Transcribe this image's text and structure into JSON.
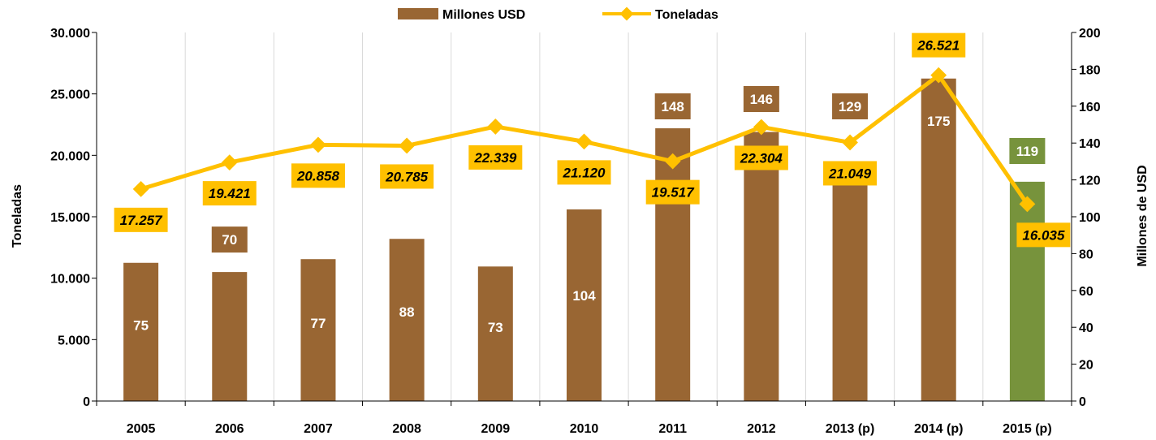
{
  "chart_data": {
    "type": "bar",
    "categories": [
      "2005",
      "2006",
      "2007",
      "2008",
      "2009",
      "2010",
      "2011",
      "2012",
      "2013 (p)",
      "2014 (p)",
      "2015 (p)"
    ],
    "series": [
      {
        "name": "Millones USD",
        "type": "bar",
        "axis": "right",
        "values": [
          75,
          70,
          77,
          88,
          73,
          104,
          148,
          146,
          129,
          175,
          119
        ],
        "labels": [
          "75",
          "70",
          "77",
          "88",
          "73",
          "104",
          "148",
          "146",
          "129",
          "175",
          "119"
        ],
        "color": "#996633",
        "highlight_color": "#77933C",
        "highlight_index": 10
      },
      {
        "name": "Toneladas",
        "type": "line",
        "axis": "left",
        "values": [
          17257,
          19421,
          20858,
          20785,
          22339,
          21120,
          19517,
          22304,
          21049,
          26521,
          16035
        ],
        "labels": [
          "17.257",
          "19.421",
          "20.858",
          "20.785",
          "22.339",
          "21.120",
          "19.517",
          "22.304",
          "21.049",
          "26.521",
          "16.035"
        ],
        "color": "#FFC000",
        "label_box_color": "#FFC000",
        "label_position": [
          "below",
          "below",
          "below",
          "below",
          "below",
          "below",
          "below",
          "below",
          "below",
          "above",
          "below"
        ]
      }
    ],
    "y_left": {
      "label": "Toneladas",
      "range": [
        0,
        30000
      ],
      "ticks": [
        "0",
        "5.000",
        "10.000",
        "15.000",
        "20.000",
        "25.000",
        "30.000"
      ]
    },
    "y_right": {
      "label": "Millones de USD",
      "range": [
        0,
        200
      ],
      "ticks": [
        "0",
        "20",
        "40",
        "60",
        "80",
        "100",
        "120",
        "140",
        "160",
        "180",
        "200"
      ]
    },
    "grid": "vertical",
    "legend": "top-center"
  }
}
